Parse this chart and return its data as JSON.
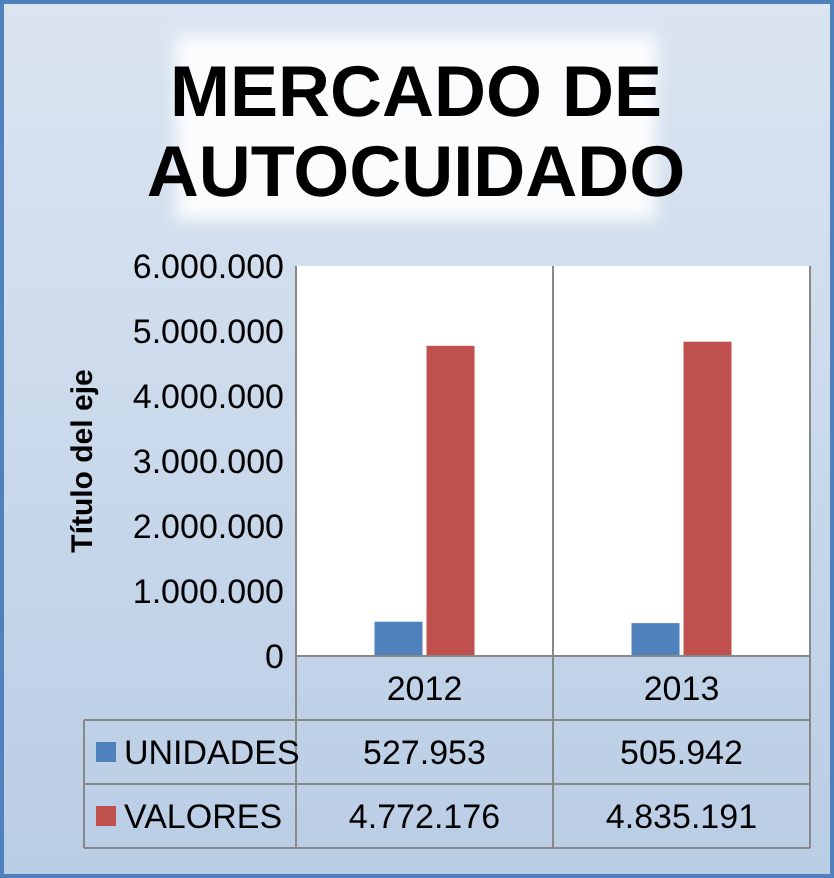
{
  "chart_data": {
    "type": "bar",
    "title": "MERCADO DE AUTOCUIDADO",
    "ylabel": "Título del eje",
    "categories": [
      "2012",
      "2013"
    ],
    "series": [
      {
        "name": "UNIDADES",
        "color": "#4f81bd",
        "values": [
          527953,
          505942
        ],
        "value_labels": [
          "527.953",
          "505.942"
        ]
      },
      {
        "name": "VALORES",
        "color": "#c0504d",
        "values": [
          4772176,
          4835191
        ],
        "value_labels": [
          "4.772.176",
          "4.835.191"
        ]
      }
    ],
    "ylim": [
      0,
      6000000
    ],
    "yticks": [
      0,
      {
        "value": 1000000,
        "label": "1.000.000"
      },
      {
        "value": 2000000,
        "label": "2.000.000"
      },
      {
        "value": 3000000,
        "label": "3.000.000"
      },
      {
        "value": 4000000,
        "label": "4.000.000"
      },
      {
        "value": 5000000,
        "label": "5.000.000"
      },
      {
        "value": 6000000,
        "label": "6.000.000"
      }
    ],
    "grid": false,
    "legend": "bottom"
  }
}
